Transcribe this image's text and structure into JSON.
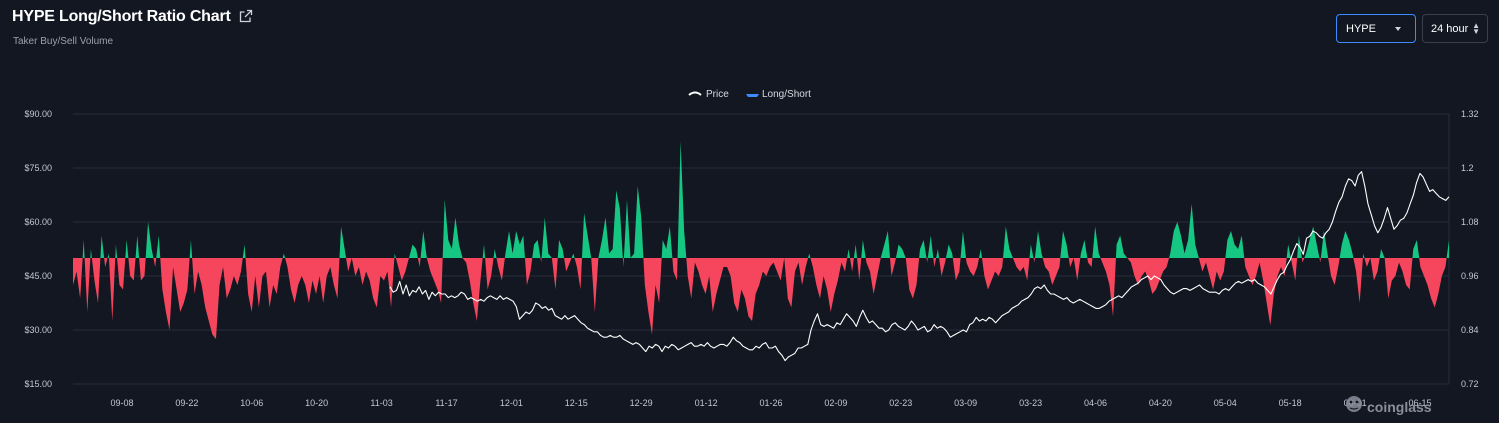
{
  "header": {
    "title": "HYPE Long/Short Ratio Chart",
    "subtitle": "Taker Buy/Sell Volume"
  },
  "controls": {
    "symbol": "HYPE",
    "period": "24 hour"
  },
  "watermark": "coinglass",
  "colors": {
    "background": "#131722",
    "grid": "#2a2e39",
    "price_line": "#ffffff",
    "long_fill": "#16c784",
    "short_fill": "#f6465d",
    "legend_long_short": "#3d8bff"
  },
  "chart_data": {
    "type": "area",
    "legend": [
      "Price",
      "Long/Short"
    ],
    "legend_position": "top-center",
    "grid": true,
    "x_tick_labels": [
      "09-08",
      "09-22",
      "10-06",
      "10-20",
      "11-03",
      "11-17",
      "12-01",
      "12-15",
      "12-29",
      "01-12",
      "01-26",
      "02-09",
      "02-23",
      "03-09",
      "03-23",
      "04-06",
      "04-20",
      "05-04",
      "05-18",
      "06-01",
      "06-15"
    ],
    "y_left": {
      "label": "",
      "ticks": [
        "$15.00",
        "$30.00",
        "$45.00",
        "$60.00",
        "$75.00",
        "$90.00"
      ],
      "range": [
        15,
        90
      ]
    },
    "y_right": {
      "label": "",
      "ticks": [
        "0.72",
        "0.84",
        "0.96",
        "1.08",
        "1.2",
        "1.32"
      ],
      "range": [
        0.72,
        1.32
      ]
    },
    "baseline_ratio": 1.0,
    "series": [
      {
        "name": "Long/Short",
        "axis": "right",
        "values": [
          0.94,
          0.97,
          0.91,
          1.04,
          0.88,
          1.02,
          0.95,
          0.9,
          1.05,
          0.98,
          1.01,
          0.86,
          1.03,
          0.94,
          0.93,
          1.04,
          0.96,
          0.95,
          1.05,
          0.95,
          0.96,
          1.08,
          1.02,
          0.98,
          1.05,
          0.93,
          0.88,
          0.84,
          0.98,
          0.93,
          0.88,
          0.9,
          0.93,
          1.04,
          0.92,
          0.97,
          0.94,
          0.89,
          0.86,
          0.83,
          0.82,
          0.94,
          0.98,
          0.91,
          0.93,
          0.96,
          0.94,
          0.97,
          1.03,
          0.92,
          0.88,
          0.96,
          0.89,
          0.96,
          0.97,
          0.89,
          0.94,
          0.92,
          0.98,
          1.01,
          0.98,
          0.93,
          0.9,
          0.94,
          0.96,
          0.94,
          0.9,
          0.95,
          0.92,
          0.96,
          0.9,
          0.96,
          0.98,
          0.94,
          0.91,
          1.07,
          1.02,
          0.97,
          1.0,
          0.96,
          0.98,
          0.94,
          0.97,
          0.95,
          0.91,
          0.89,
          0.96,
          0.95,
          0.97,
          0.89,
          1.01,
          0.98,
          0.95,
          0.97,
          1.0,
          1.03,
          1.02,
          0.98,
          1.06,
          1.0,
          0.97,
          0.95,
          0.93,
          0.9,
          1.13,
          1.04,
          1.02,
          1.09,
          1.03,
          1.0,
          0.99,
          0.95,
          0.9,
          0.86,
          0.95,
          1.03,
          0.93,
          0.96,
          1.02,
          0.98,
          0.95,
          1.01,
          1.06,
          1.01,
          1.06,
          1.03,
          1.05,
          0.94,
          0.97,
          1.03,
          1.04,
          0.99,
          1.09,
          1.01,
          1.0,
          0.93,
          1.04,
          1.02,
          0.97,
          0.99,
          1.01,
          0.98,
          0.93,
          1.1,
          1.05,
          1.0,
          0.88,
          1.0,
          1.04,
          1.09,
          1.01,
          1.02,
          1.15,
          1.11,
          0.98,
          1.13,
          1.0,
          1.01,
          1.16,
          1.09,
          0.94,
          0.88,
          0.83,
          0.94,
          0.9,
          1.04,
          1.02,
          1.07,
          0.97,
          0.95,
          1.26,
          1.06,
          0.96,
          0.91,
          0.99,
          0.97,
          0.94,
          0.92,
          0.96,
          0.88,
          0.92,
          0.95,
          0.98,
          0.98,
          0.96,
          0.9,
          0.88,
          0.93,
          0.91,
          0.87,
          0.86,
          0.92,
          0.94,
          0.97,
          0.96,
          0.98,
          0.99,
          0.97,
          0.95,
          1.0,
          0.91,
          0.89,
          0.97,
          0.99,
          0.94,
          0.98,
          1.01,
          0.98,
          0.94,
          0.91,
          0.96,
          0.93,
          0.88,
          0.92,
          0.95,
          0.99,
          0.97,
          1.02,
          0.97,
          1.03,
          0.95,
          1.04,
          0.99,
          0.97,
          0.92,
          0.96,
          1.0,
          1.03,
          1.06,
          0.96,
          0.99,
          1.03,
          1.02,
          1.0,
          0.93,
          0.91,
          0.94,
          1.02,
          1.04,
          0.99,
          1.05,
          0.98,
          1.02,
          0.96,
          0.99,
          1.03,
          1.01,
          0.95,
          0.97,
          1.06,
          0.99,
          0.97,
          0.96,
          0.98,
          1.02,
          0.96,
          0.93,
          0.95,
          0.97,
          0.96,
          0.98,
          1.07,
          1.02,
          1.0,
          0.98,
          0.97,
          0.98,
          0.95,
          1.03,
          0.99,
          1.06,
          1.01,
          0.98,
          0.97,
          0.94,
          0.96,
          0.98,
          1.06,
          1.03,
          0.98,
          1.0,
          0.95,
          1.01,
          1.04,
          0.99,
          0.98,
          1.07,
          1.01,
          0.99,
          0.97,
          0.94,
          0.87,
          1.03,
          1.05,
          1.01,
          1.0,
          0.99,
          0.96,
          0.94,
          0.96,
          0.97,
          0.95,
          0.92,
          0.93,
          0.95,
          0.97,
          0.98,
          1.01,
          1.06,
          1.08,
          1.05,
          1.01,
          1.04,
          1.12,
          1.03,
          1.0,
          0.97,
          0.99,
          0.96,
          0.93,
          0.97,
          0.95,
          0.97,
          1.04,
          1.06,
          1.03,
          1.02,
          1.05,
          0.98,
          0.96,
          0.94,
          0.96,
          0.99,
          0.95,
          0.9,
          0.85,
          0.92,
          0.96,
          0.98,
          0.96,
          1.03,
          0.99,
          0.95,
          1.05,
          0.99,
          1.01,
          1.04,
          1.07,
          1.03,
          0.99,
          1.06,
          1.01,
          0.96,
          0.94,
          0.98,
          1.03,
          1.06,
          1.04,
          1.01,
          0.97,
          0.9,
          1.01,
          0.98,
          1.0,
          0.95,
          0.97,
          1.02,
          1.0,
          0.91,
          0.95,
          0.96,
          0.99,
          0.97,
          0.94,
          0.93,
          1.02,
          1.04,
          0.98,
          0.96,
          0.94,
          0.91,
          0.89,
          0.92,
          0.96,
          0.98,
          1.04
        ]
      },
      {
        "name": "Price",
        "axis": "left",
        "start_date": "11-03",
        "values": [
          42.0,
          40.5,
          41.0,
          43.5,
          40.0,
          42.5,
          39.5,
          41.0,
          40.5,
          42.0,
          40.0,
          41.0,
          38.5,
          40.5,
          39.5,
          40.5,
          40.0,
          40.0,
          39.0,
          39.5,
          39.0,
          39.5,
          40.5,
          40.0,
          38.5,
          39.0,
          38.5,
          38.0,
          38.5,
          38.0,
          39.0,
          39.5,
          39.0,
          38.5,
          39.5,
          38.5,
          39.0,
          38.5,
          38.0,
          36.5,
          33.0,
          34.0,
          35.0,
          34.5,
          35.5,
          37.5,
          37.0,
          36.0,
          36.5,
          35.5,
          36.0,
          34.0,
          33.5,
          33.0,
          34.0,
          33.0,
          33.5,
          34.0,
          33.0,
          32.0,
          31.5,
          30.5,
          30.0,
          29.5,
          29.5,
          28.5,
          28.0,
          28.0,
          28.5,
          28.0,
          28.0,
          28.5,
          27.5,
          27.0,
          26.5,
          26.0,
          26.5,
          26.0,
          25.0,
          24.0,
          25.5,
          25.0,
          26.0,
          25.5,
          24.0,
          25.5,
          25.0,
          26.0,
          25.5,
          24.5,
          25.0,
          25.5,
          26.0,
          26.5,
          25.5,
          25.5,
          26.0,
          25.5,
          26.5,
          25.5,
          25.0,
          25.5,
          26.0,
          26.0,
          25.5,
          26.5,
          28.0,
          27.0,
          26.5,
          25.5,
          25.0,
          24.5,
          24.5,
          25.5,
          25.0,
          26.0,
          26.5,
          25.0,
          25.0,
          25.5,
          24.0,
          23.0,
          21.5,
          22.5,
          23.0,
          23.5,
          25.0,
          25.0,
          25.5,
          26.0,
          30.0,
          32.5,
          34.5,
          31.5,
          31.0,
          31.5,
          31.0,
          30.5,
          32.0,
          31.5,
          33.0,
          34.5,
          33.5,
          32.5,
          31.0,
          33.5,
          35.5,
          33.5,
          32.0,
          32.5,
          31.5,
          30.5,
          30.5,
          29.5,
          30.0,
          31.5,
          32.0,
          31.0,
          30.5,
          30.0,
          31.0,
          32.5,
          31.5,
          30.0,
          30.5,
          31.0,
          29.5,
          30.0,
          31.5,
          30.5,
          31.0,
          30.5,
          29.5,
          28.0,
          28.5,
          29.0,
          29.5,
          30.0,
          29.5,
          31.5,
          32.0,
          33.5,
          32.5,
          33.0,
          32.5,
          33.5,
          33.0,
          32.0,
          33.0,
          34.0,
          34.5,
          35.0,
          36.0,
          36.5,
          37.0,
          38.0,
          38.5,
          39.0,
          40.0,
          41.5,
          42.0,
          41.5,
          42.5,
          41.0,
          40.0,
          40.0,
          39.5,
          39.0,
          38.5,
          39.0,
          38.0,
          37.5,
          38.0,
          38.5,
          38.0,
          37.5,
          37.0,
          36.5,
          36.0,
          36.0,
          36.5,
          37.0,
          38.0,
          38.5,
          39.0,
          39.5,
          39.0,
          40.0,
          41.0,
          42.0,
          42.5,
          43.0,
          44.0,
          44.5,
          45.0,
          44.0,
          45.0,
          44.5,
          44.0,
          42.5,
          41.5,
          40.5,
          40.0,
          40.5,
          41.0,
          41.5,
          41.5,
          41.0,
          41.5,
          42.0,
          42.5,
          41.5,
          41.0,
          40.5,
          40.5,
          40.5,
          40.0,
          41.0,
          41.5,
          41.0,
          42.0,
          43.0,
          43.5,
          43.0,
          43.5,
          44.0,
          43.5,
          44.0,
          43.0,
          42.5,
          42.0,
          41.0,
          40.0,
          42.0,
          44.0,
          45.5,
          46.0,
          48.0,
          49.5,
          52.0,
          54.0,
          53.0,
          51.0,
          55.5,
          56.0,
          57.5,
          57.0,
          56.0,
          55.5,
          57.0,
          58.0,
          60.0,
          63.0,
          65.5,
          67.0,
          70.0,
          72.0,
          71.5,
          70.0,
          73.0,
          74.0,
          70.0,
          65.0,
          62.0,
          59.0,
          57.0,
          58.5,
          61.0,
          64.0,
          61.0,
          58.0,
          59.0,
          60.5,
          61.0,
          62.5,
          65.0,
          67.5,
          71.0,
          73.5,
          72.5,
          70.5,
          68.5,
          69.0,
          68.0,
          67.0,
          66.5,
          66.0,
          67.0
        ]
      }
    ]
  }
}
